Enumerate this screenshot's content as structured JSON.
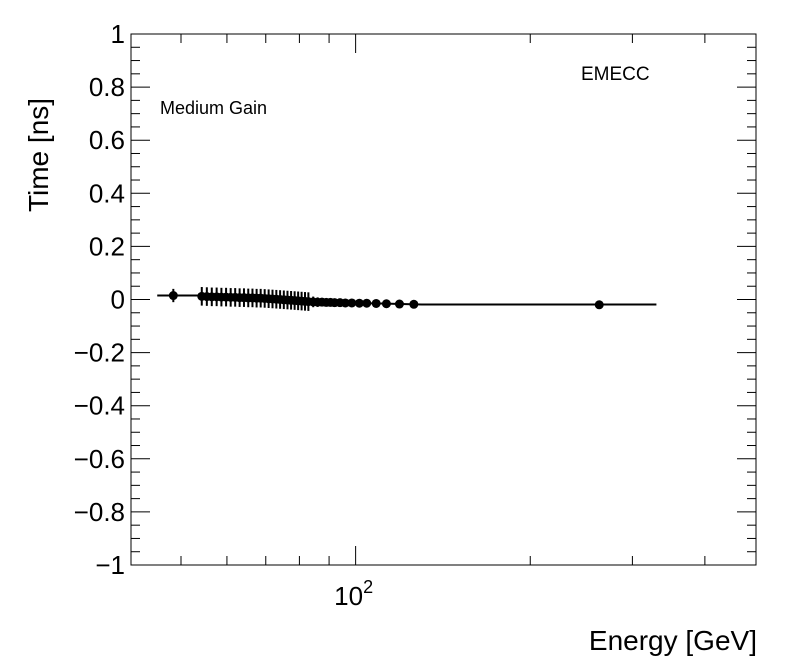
{
  "chart_data": {
    "type": "scatter",
    "xlabel": "Energy [GeV]",
    "ylabel": "Time [ns]",
    "xscale": "log",
    "xlim": [
      41,
      490
    ],
    "ylim": [
      -1,
      1
    ],
    "y_ticks": [
      {
        "value": 1,
        "label": "1"
      },
      {
        "value": 0.8,
        "label": "0.8"
      },
      {
        "value": 0.6,
        "label": "0.6"
      },
      {
        "value": 0.4,
        "label": "0.4"
      },
      {
        "value": 0.2,
        "label": "0.2"
      },
      {
        "value": 0,
        "label": "0"
      },
      {
        "value": -0.2,
        "label": "−0.2"
      },
      {
        "value": -0.4,
        "label": "−0.4"
      },
      {
        "value": -0.6,
        "label": "−0.6"
      },
      {
        "value": -0.8,
        "label": "−0.8"
      },
      {
        "value": -1,
        "label": "−1"
      }
    ],
    "x_major_ticks": [
      {
        "value": 100,
        "base": "10",
        "exponent": "2"
      }
    ],
    "annotations": {
      "gain": "Medium Gain",
      "region": "EMECC"
    },
    "grid": false,
    "legend": "none",
    "colors": {
      "marker": "#000000",
      "fit_line": "#000000"
    },
    "points": [
      {
        "x": 48.5,
        "y": 0.015,
        "yerr": 0.025
      },
      {
        "x": 54.3,
        "y": 0.012,
        "yerr": 0.035
      },
      {
        "x": 55.4,
        "y": 0.011,
        "yerr": 0.035
      },
      {
        "x": 56.5,
        "y": 0.01,
        "yerr": 0.035
      },
      {
        "x": 57.6,
        "y": 0.01,
        "yerr": 0.035
      },
      {
        "x": 58.7,
        "y": 0.009,
        "yerr": 0.035
      },
      {
        "x": 59.8,
        "y": 0.009,
        "yerr": 0.035
      },
      {
        "x": 60.9,
        "y": 0.008,
        "yerr": 0.035
      },
      {
        "x": 62.0,
        "y": 0.008,
        "yerr": 0.035
      },
      {
        "x": 63.1,
        "y": 0.007,
        "yerr": 0.035
      },
      {
        "x": 64.2,
        "y": 0.007,
        "yerr": 0.035
      },
      {
        "x": 65.3,
        "y": 0.006,
        "yerr": 0.035
      },
      {
        "x": 66.4,
        "y": 0.006,
        "yerr": 0.035
      },
      {
        "x": 67.5,
        "y": 0.005,
        "yerr": 0.035
      },
      {
        "x": 68.6,
        "y": 0.005,
        "yerr": 0.035
      },
      {
        "x": 69.7,
        "y": 0.004,
        "yerr": 0.035
      },
      {
        "x": 70.8,
        "y": 0.003,
        "yerr": 0.035
      },
      {
        "x": 71.9,
        "y": 0.002,
        "yerr": 0.035
      },
      {
        "x": 73.0,
        "y": 0.001,
        "yerr": 0.035
      },
      {
        "x": 74.1,
        "y": 0.0,
        "yerr": 0.035
      },
      {
        "x": 75.2,
        "y": -0.001,
        "yerr": 0.035
      },
      {
        "x": 76.3,
        "y": -0.002,
        "yerr": 0.035
      },
      {
        "x": 77.4,
        "y": -0.003,
        "yerr": 0.035
      },
      {
        "x": 78.5,
        "y": -0.004,
        "yerr": 0.035
      },
      {
        "x": 79.6,
        "y": -0.005,
        "yerr": 0.035
      },
      {
        "x": 80.7,
        "y": -0.006,
        "yerr": 0.035
      },
      {
        "x": 81.8,
        "y": -0.007,
        "yerr": 0.035
      },
      {
        "x": 82.9,
        "y": -0.008,
        "yerr": 0.035
      },
      {
        "x": 84.5,
        "y": -0.009,
        "yerr": 0.02
      },
      {
        "x": 86.0,
        "y": -0.01,
        "yerr": 0.018
      },
      {
        "x": 87.5,
        "y": -0.01,
        "yerr": 0.016
      },
      {
        "x": 89.0,
        "y": -0.011,
        "yerr": 0.015
      },
      {
        "x": 90.5,
        "y": -0.011,
        "yerr": 0.014
      },
      {
        "x": 92.0,
        "y": -0.012,
        "yerr": 0.013
      },
      {
        "x": 94.0,
        "y": -0.012,
        "yerr": 0.012
      },
      {
        "x": 96.0,
        "y": -0.013,
        "yerr": 0.011
      },
      {
        "x": 98.5,
        "y": -0.013,
        "yerr": 0.01
      },
      {
        "x": 101.5,
        "y": -0.014,
        "yerr": 0.009
      },
      {
        "x": 104.5,
        "y": -0.014,
        "yerr": 0.008
      },
      {
        "x": 108.5,
        "y": -0.015,
        "yerr": 0.007
      },
      {
        "x": 113.0,
        "y": -0.016,
        "yerr": 0.006
      },
      {
        "x": 119.0,
        "y": -0.017,
        "yerr": 0.005
      },
      {
        "x": 126.0,
        "y": -0.018,
        "yerr": 0.005
      },
      {
        "x": 263.0,
        "y": -0.02,
        "yerr": 0.004
      }
    ],
    "fit_line": [
      {
        "x": 45.5,
        "y": 0.015
      },
      {
        "x": 53.5,
        "y": 0.015
      },
      {
        "x": 60,
        "y": 0.008
      },
      {
        "x": 70,
        "y": 0.004
      },
      {
        "x": 80,
        "y": -0.006
      },
      {
        "x": 90,
        "y": -0.011
      },
      {
        "x": 110,
        "y": -0.015
      },
      {
        "x": 130,
        "y": -0.019
      },
      {
        "x": 200,
        "y": -0.019
      },
      {
        "x": 330,
        "y": -0.019
      }
    ]
  }
}
